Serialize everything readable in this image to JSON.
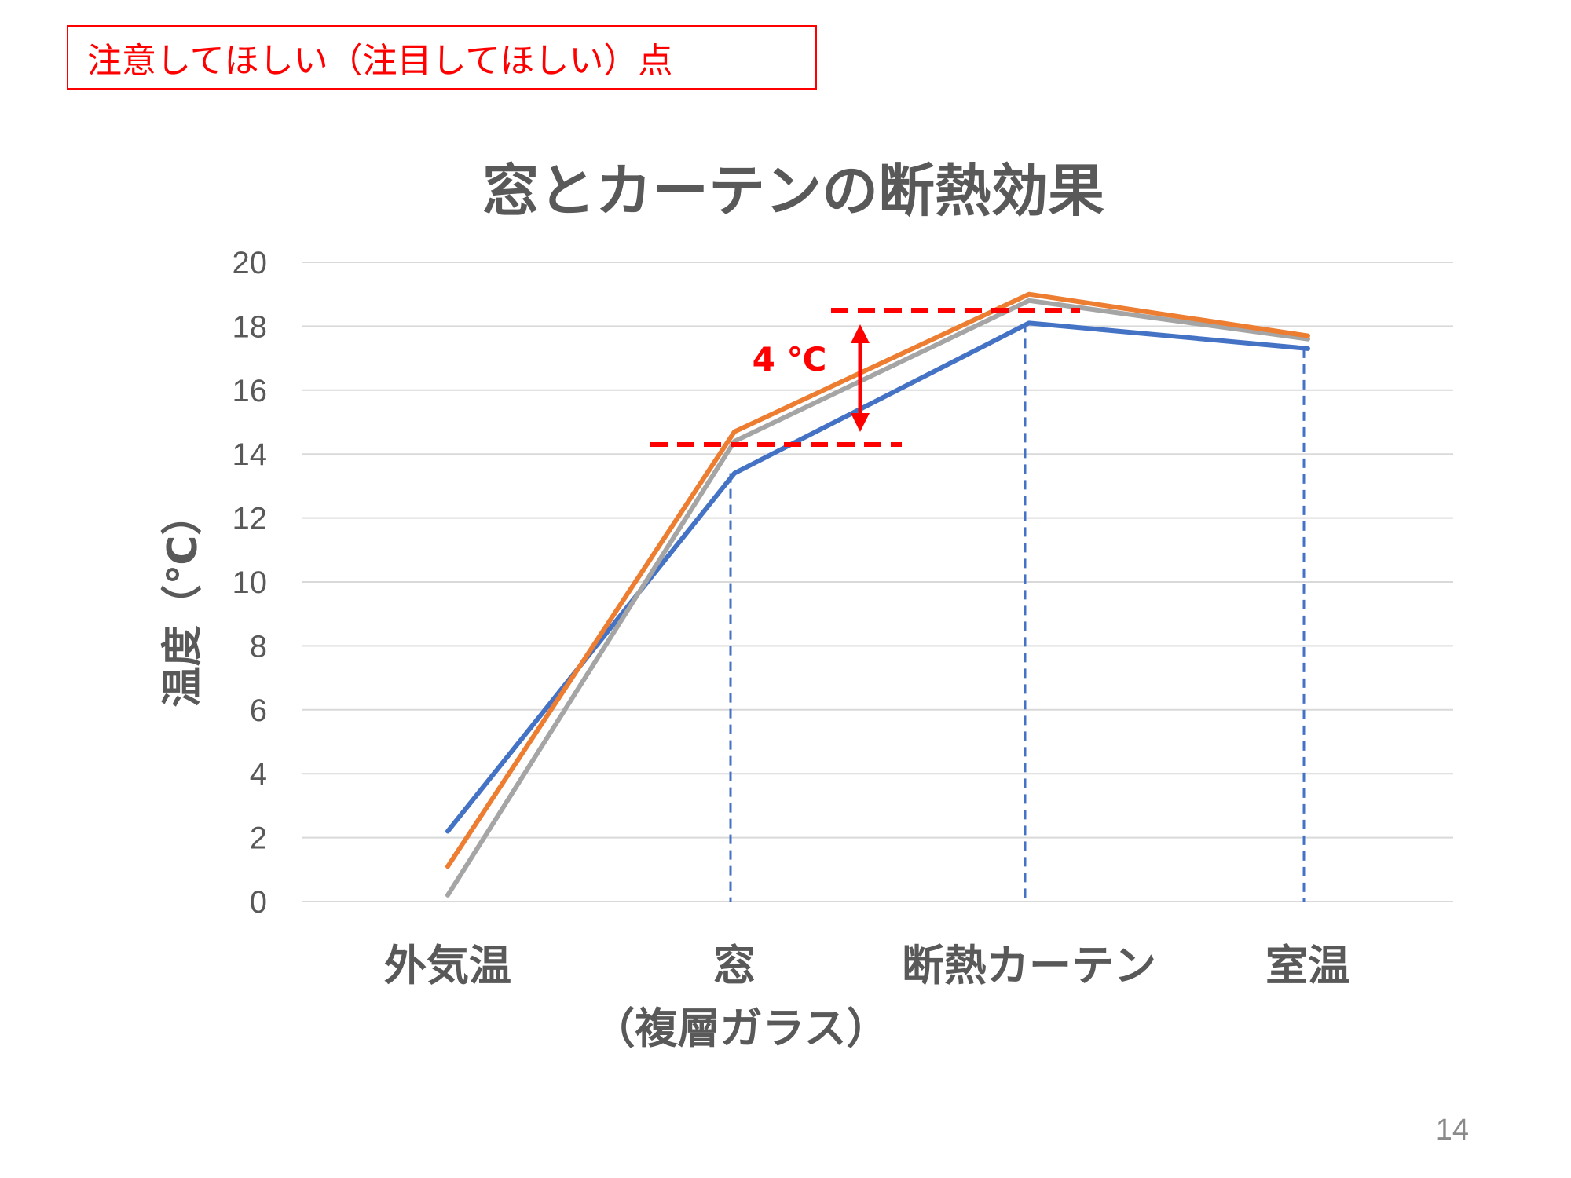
{
  "note": "注意してほしい（注目してほしい）点",
  "page_number": "14",
  "colors": {
    "note": "#ff0000",
    "series_blue": "#4472c4",
    "series_orange": "#ed7d31",
    "series_gray": "#a5a5a5",
    "grid": "#d9d9d9",
    "annotation": "#ff0000",
    "text": "#595959"
  },
  "chart_data": {
    "type": "line",
    "title": "窓とカーテンの断熱効果",
    "xlabel": "",
    "ylabel": "温度（℃）",
    "categories": [
      "外気温",
      "窓",
      "断熱カーテン",
      "室温"
    ],
    "category_sublabels": [
      "",
      "（複層ガラス）",
      "",
      ""
    ],
    "ylim": [
      0,
      20
    ],
    "yticks": [
      "0",
      "2",
      "4",
      "6",
      "8",
      "10",
      "12",
      "14",
      "16",
      "18",
      "20"
    ],
    "grid": true,
    "legend": "none",
    "series": [
      {
        "color": "#4472c4",
        "values": [
          2.2,
          13.4,
          18.1,
          17.3
        ]
      },
      {
        "color": "#a5a5a5",
        "values": [
          0.2,
          14.4,
          18.8,
          17.6
        ]
      },
      {
        "color": "#ed7d31",
        "values": [
          1.1,
          14.7,
          19.0,
          17.7
        ]
      }
    ],
    "annotation": {
      "label": "4 ℃",
      "from_value": 14.3,
      "to_value": 18.5
    }
  }
}
